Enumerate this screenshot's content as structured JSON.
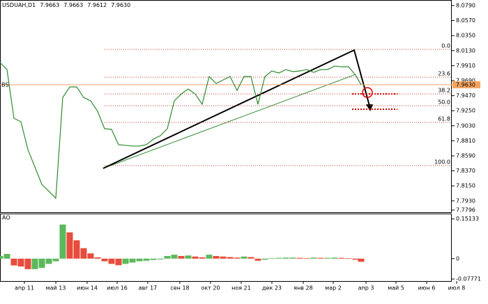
{
  "chart_data": [
    {
      "type": "line",
      "title": "USDUAH,D1",
      "quote": [
        "7.9663",
        "7.9663",
        "7.9612",
        "7.9630"
      ],
      "x": [
        0,
        1,
        2,
        3,
        4,
        5,
        6,
        7,
        8,
        9,
        10,
        11,
        12,
        13,
        14,
        15,
        16,
        17,
        18,
        19,
        20,
        21,
        22,
        23,
        24,
        25,
        26,
        27,
        28,
        29,
        30,
        31,
        32,
        33,
        34,
        35,
        36,
        37,
        38,
        39,
        40,
        41,
        42,
        43,
        44,
        45,
        46,
        47,
        48,
        49,
        50,
        51,
        51.8
      ],
      "series": [
        {
          "name": "USDUAH",
          "color": "#2e8b2e",
          "values": [
            7.9955,
            7.9853,
            7.914,
            7.9089,
            7.8682,
            7.8427,
            7.8172,
            7.8071,
            7.7969,
            7.9445,
            7.9598,
            7.9598,
            7.9445,
            7.9394,
            7.9242,
            7.8987,
            7.8977,
            7.8753,
            7.8743,
            7.8733,
            7.8733,
            7.8753,
            7.8834,
            7.8885,
            7.8987,
            7.9394,
            7.9496,
            7.9568,
            7.9496,
            7.9344,
            7.9751,
            7.9649,
            7.97,
            7.9751,
            7.9547,
            7.9751,
            7.9751,
            7.9344,
            7.9751,
            7.9832,
            7.9802,
            7.9853,
            7.9822,
            7.9832,
            7.9853,
            7.9812,
            7.9853,
            7.9853,
            7.9904,
            7.9893,
            7.9893,
            7.9771,
            7.963
          ]
        }
      ],
      "xlim": [
        0,
        64.8
      ],
      "ylim": [
        7.7765,
        8.0871
      ],
      "yticks": [
        {
          "value": 8.079,
          "label": "8.0790"
        },
        {
          "value": 8.057,
          "label": "8.0570"
        },
        {
          "value": 8.035,
          "label": "8.0350"
        },
        {
          "value": 8.013,
          "label": "8.0130"
        },
        {
          "value": 7.991,
          "label": "7.9910"
        },
        {
          "value": 7.969,
          "label": "7.9690"
        },
        {
          "value": 7.947,
          "label": "7.9470"
        },
        {
          "value": 7.925,
          "label": "7.9250"
        },
        {
          "value": 7.903,
          "label": "7.9030"
        },
        {
          "value": 7.881,
          "label": "7.8810"
        },
        {
          "value": 7.859,
          "label": "7.8590"
        },
        {
          "value": 7.837,
          "label": "7.8370"
        },
        {
          "value": 7.815,
          "label": "7.8150"
        },
        {
          "value": 7.793,
          "label": "7.7930"
        },
        {
          "value": 7.7796,
          "label": "7.7796"
        }
      ],
      "current_price": {
        "value": 7.963,
        "label": "7.9630"
      },
      "line_label": "BS",
      "fib_levels": [
        {
          "value": 8.0148,
          "label": "0.0"
        },
        {
          "value": 7.9741,
          "label": "23.6"
        },
        {
          "value": 7.9496,
          "label": "38.2"
        },
        {
          "value": 7.9323,
          "label": "50.0"
        },
        {
          "value": 7.9079,
          "label": "61.8"
        },
        {
          "value": 7.8447,
          "label": "100.0"
        }
      ],
      "fib_color": "#c0392b"
    },
    {
      "type": "bar",
      "title": "AO",
      "x": [
        0,
        1,
        2,
        3,
        4,
        5,
        6,
        7,
        8,
        9,
        10,
        11,
        12,
        13,
        14,
        15,
        16,
        17,
        18,
        19,
        20,
        21,
        22,
        23,
        24,
        25,
        26,
        27,
        28,
        29,
        30,
        31,
        32,
        33,
        34,
        35,
        36,
        37,
        38,
        39,
        40,
        41,
        42,
        43,
        44,
        45,
        46,
        47,
        48,
        49,
        50,
        51,
        51.8
      ],
      "values": [
        0.01,
        0.018,
        -0.026,
        -0.03,
        -0.04,
        -0.04,
        -0.035,
        -0.02,
        -0.01,
        0.13,
        0.1,
        0.07,
        0.04,
        0.02,
        0.005,
        -0.01,
        -0.02,
        -0.025,
        -0.02,
        -0.015,
        -0.01,
        -0.008,
        -0.005,
        -0.003,
        0.01,
        0.015,
        0.01,
        0.012,
        0.008,
        0.005,
        0.015,
        0.01,
        0.008,
        0.006,
        0.004,
        0.008,
        0.006,
        -0.008,
        -0.004,
        0.002,
        0.003,
        0.004,
        0.004,
        0.003,
        0.002,
        0.004,
        0.003,
        0.003,
        0.004,
        0.003,
        0.002,
        -0.004,
        -0.012
      ],
      "up_color": "#5cb85c",
      "down_color": "#e74c3c",
      "xlim": [
        0,
        64.8
      ],
      "ylim": [
        -0.0854,
        0.1718
      ],
      "yticks": [
        0.15133,
        0,
        -0.07771
      ],
      "xticks": [
        {
          "value": 3.5,
          "label": "апр 11"
        },
        {
          "value": 8,
          "label": "май 13"
        },
        {
          "value": 12.5,
          "label": "июн 14"
        },
        {
          "value": 16.8,
          "label": "июл 16"
        },
        {
          "value": 21.2,
          "label": "авг 17"
        },
        {
          "value": 25.8,
          "label": "сен 18"
        },
        {
          "value": 30.2,
          "label": "окт 20"
        },
        {
          "value": 34.6,
          "label": "ноя 21"
        },
        {
          "value": 39,
          "label": "дек 23"
        },
        {
          "value": 43.5,
          "label": "янв 28"
        },
        {
          "value": 47.8,
          "label": "мар 2"
        },
        {
          "value": 52.5,
          "label": "апр 3"
        },
        {
          "value": 56.8,
          "label": "май 5"
        },
        {
          "value": 61.2,
          "label": "июн 6"
        },
        {
          "value": 65.5,
          "label": "июл 8"
        }
      ]
    }
  ]
}
